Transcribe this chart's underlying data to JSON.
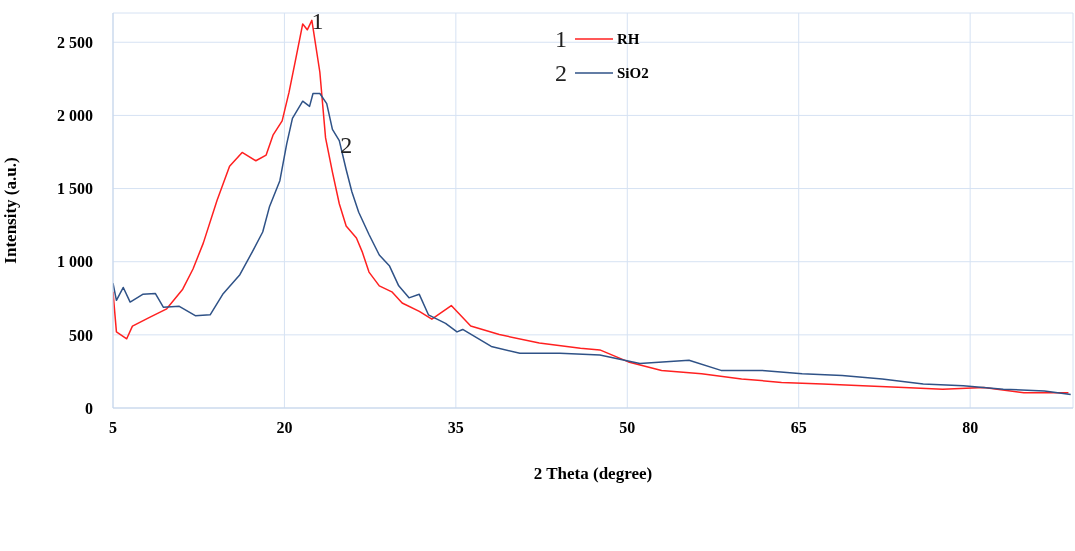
{
  "chart_data": {
    "type": "line",
    "xlabel": "2 Theta (degree)",
    "ylabel": "Intensity (a.u.)",
    "xlim": [
      5,
      89
    ],
    "xticks": [
      5,
      20,
      35,
      50,
      65,
      80
    ],
    "ylim": [
      0,
      2700
    ],
    "yticks": [
      0,
      500,
      {
        "value": 1000,
        "label": "1 000"
      },
      {
        "value": 1500,
        "label": "1 500"
      },
      {
        "value": 2000,
        "label": "2 000"
      },
      {
        "value": 2500,
        "label": "2 500"
      }
    ],
    "grid": true,
    "legend": "top",
    "marker": "none",
    "line_style": "solid",
    "annotations": [
      "1",
      "2",
      {
        "text": "1",
        "x": 22.9,
        "y": 2650
      },
      {
        "text": "2",
        "x": 25.4,
        "y": 1800
      }
    ],
    "series": [
      {
        "name": "RH",
        "color": "#ff2020",
        "x": [
          5,
          5.3,
          6.2,
          6.7,
          8.2,
          9.7,
          11.1,
          12,
          12.9,
          14.1,
          15.2,
          16.3,
          17.5,
          18.4,
          19,
          19.8,
          20.4,
          21,
          21.6,
          22,
          22.4,
          23.1,
          23.6,
          24.2,
          24.8,
          25.4,
          26.3,
          26.8,
          27.4,
          28.3,
          29.4,
          30.3,
          31.8,
          32.9,
          34.6,
          36.3,
          38.8,
          42.3,
          45.9,
          47.6,
          50.1,
          53,
          56.5,
          60,
          63.5,
          67.1,
          70.6,
          74.2,
          77.6,
          81.2,
          84.7,
          88.6
        ],
        "values": [
          794,
          520,
          473,
          560,
          620,
          678,
          812,
          950,
          1127,
          1419,
          1652,
          1747,
          1690,
          1729,
          1865,
          1963,
          2157,
          2390,
          2625,
          2585,
          2650,
          2295,
          1846,
          1612,
          1396,
          1244,
          1162,
          1069,
          929,
          835,
          794,
          718,
          660,
          607,
          700,
          561,
          502,
          444,
          409,
          397,
          315,
          257,
          234,
          199,
          175,
          164,
          152,
          140,
          128,
          140,
          105,
          105
        ]
      },
      {
        "name": "SiO2",
        "color": "#2f5287",
        "x": [
          5,
          5.3,
          5.9,
          6.5,
          7.6,
          8.7,
          9.4,
          10.8,
          12.2,
          13.5,
          14.6,
          16.1,
          17.2,
          18.1,
          18.7,
          19.6,
          20.2,
          20.7,
          21.6,
          22.2,
          22.5,
          23.1,
          23.7,
          24.2,
          24.8,
          25.4,
          25.9,
          26.5,
          27.4,
          28.3,
          29.2,
          30,
          30.9,
          31.8,
          32.6,
          34.1,
          35.1,
          35.6,
          38.1,
          40.6,
          44.1,
          47.6,
          51.1,
          55.4,
          58.2,
          61.8,
          65.3,
          68.8,
          72.3,
          75.9,
          79.4,
          82.9,
          86.5,
          88.8
        ],
        "values": [
          853,
          736,
          824,
          724,
          777,
          783,
          689,
          695,
          631,
          637,
          777,
          911,
          1069,
          1203,
          1378,
          1554,
          1805,
          1980,
          2097,
          2062,
          2150,
          2150,
          2080,
          1904,
          1828,
          1630,
          1478,
          1338,
          1186,
          1046,
          970,
          835,
          753,
          777,
          637,
          578,
          520,
          537,
          421,
          374,
          374,
          362,
          304,
          327,
          257,
          257,
          234,
          222,
          199,
          164,
          152,
          128,
          117,
          93
        ]
      }
    ]
  }
}
